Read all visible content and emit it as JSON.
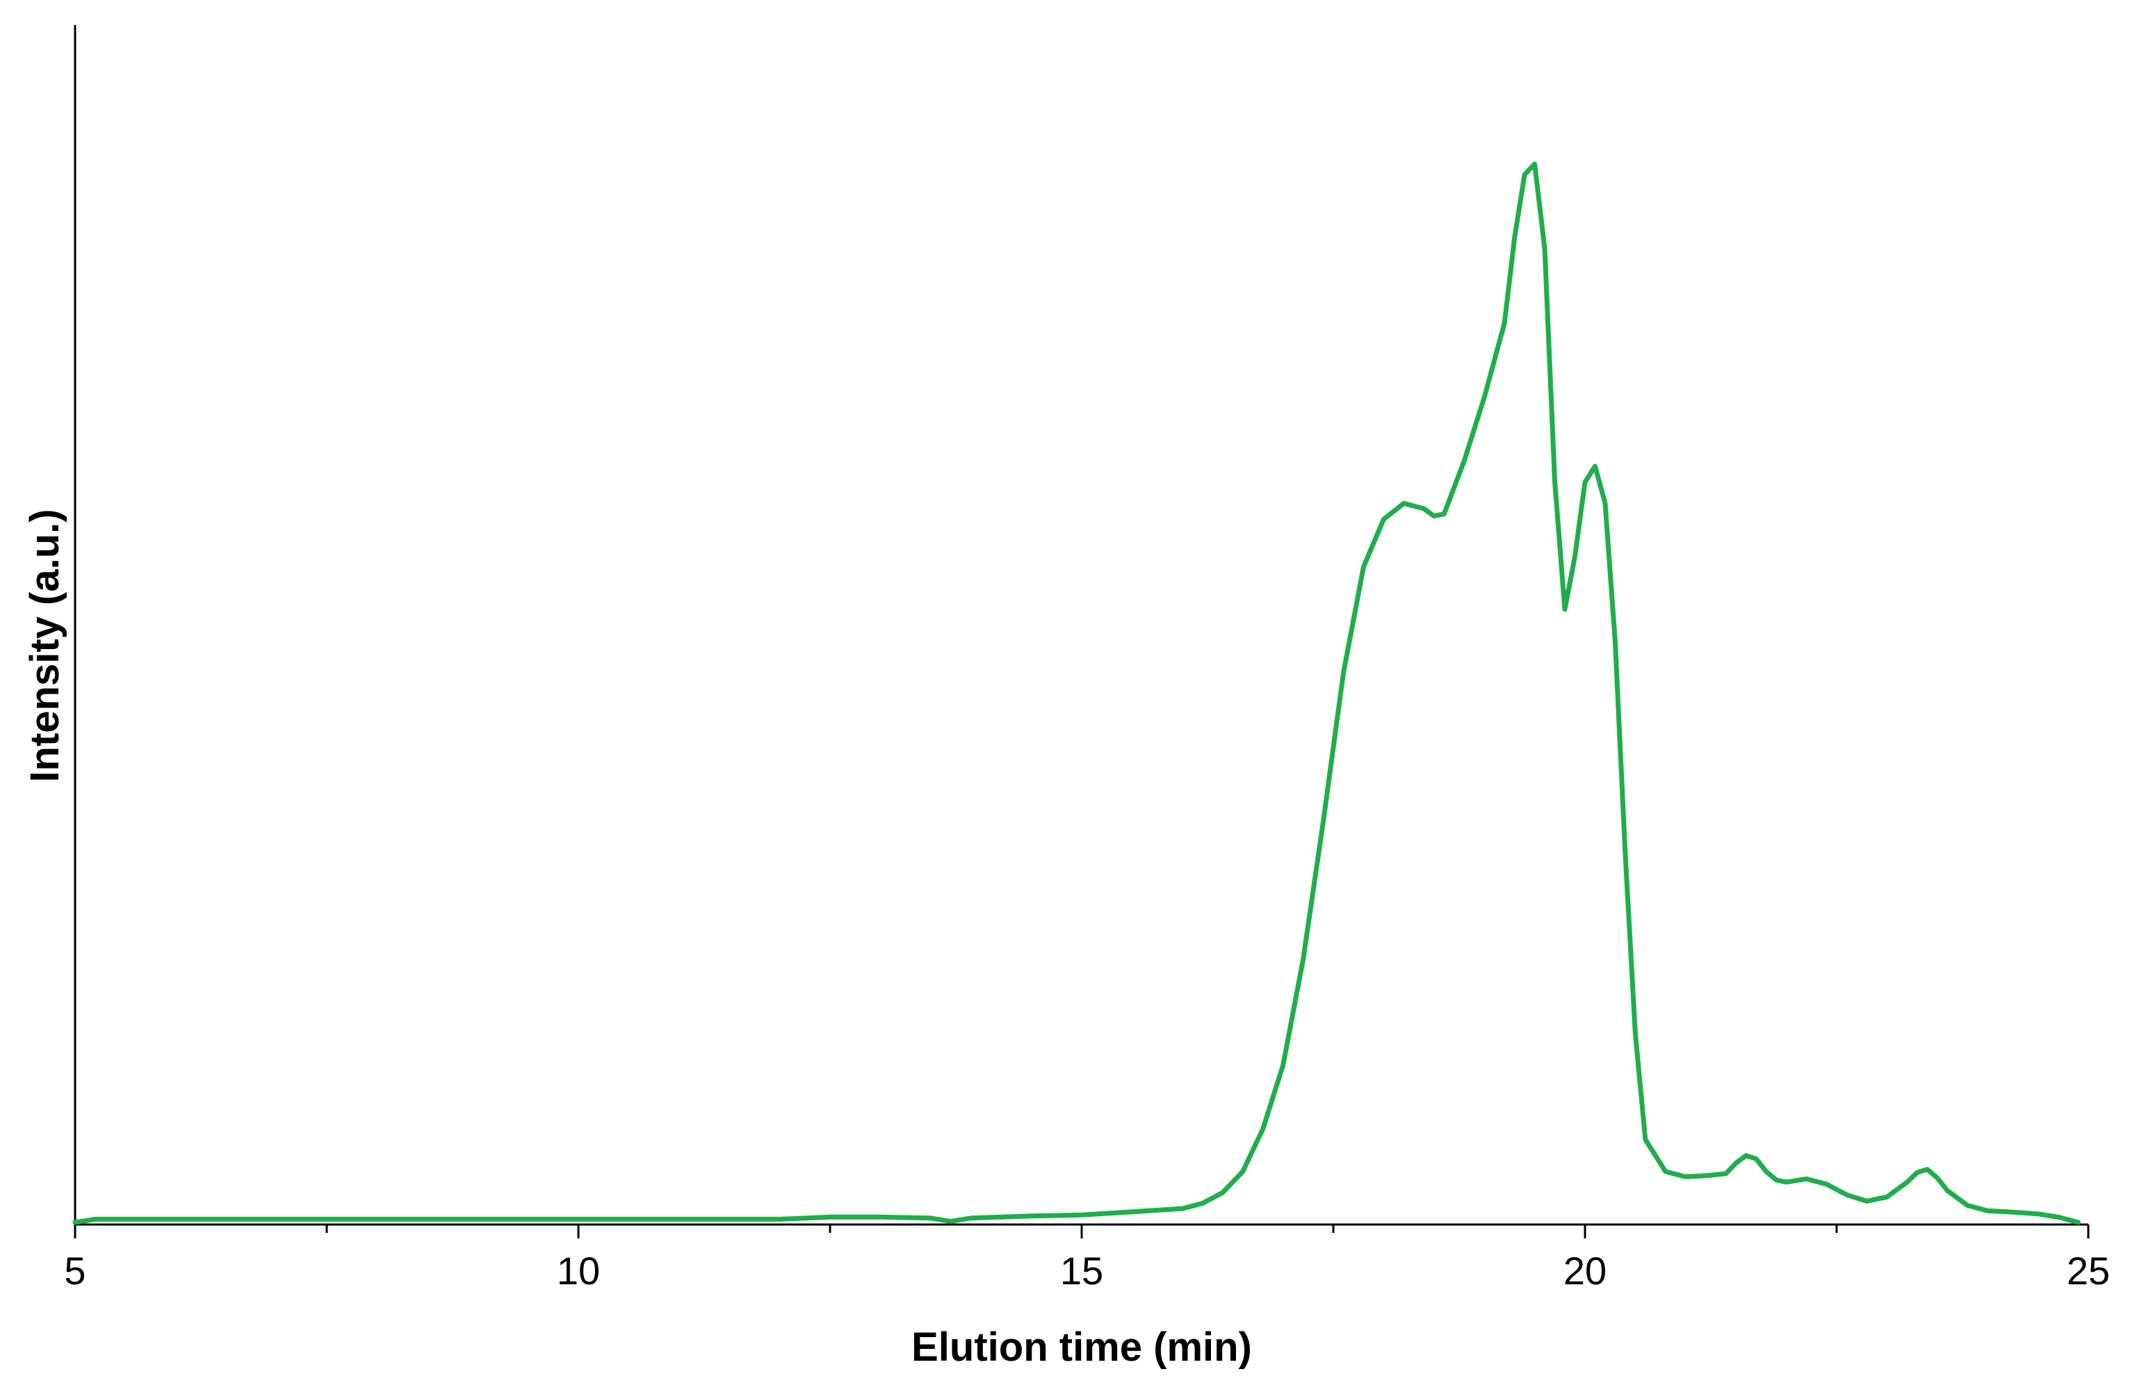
{
  "chart_data": {
    "type": "line",
    "title": "",
    "xlabel": "Elution time (min)",
    "ylabel": "Intensity (a.u.)",
    "xlim": [
      5,
      25
    ],
    "ylim": [
      0,
      100
    ],
    "x_ticks": [
      5,
      10,
      15,
      20,
      25
    ],
    "x_minor_ticks": [
      7.5,
      12.5,
      17.5,
      22.5
    ],
    "y_ticks_shown": false,
    "grid": false,
    "legend": "none",
    "series_color": "#1fae4b",
    "series": [
      {
        "x": [
          5.0,
          5.2,
          6.0,
          8.0,
          10.0,
          12.0,
          12.5,
          13.0,
          13.5,
          13.7,
          13.9,
          14.5,
          15.0,
          15.5,
          16.0,
          16.2,
          16.4,
          16.6,
          16.8,
          17.0,
          17.2,
          17.4,
          17.6,
          17.8,
          18.0,
          18.2,
          18.4,
          18.5,
          18.6,
          18.8,
          19.0,
          19.2,
          19.3,
          19.4,
          19.5,
          19.6,
          19.7,
          19.8,
          19.9,
          20.0,
          20.1,
          20.2,
          20.3,
          20.4,
          20.5,
          20.6,
          20.8,
          21.0,
          21.2,
          21.4,
          21.5,
          21.6,
          21.7,
          21.8,
          21.9,
          22.0,
          22.2,
          22.4,
          22.6,
          22.8,
          23.0,
          23.2,
          23.3,
          23.4,
          23.5,
          23.6,
          23.8,
          24.0,
          24.2,
          24.5,
          24.7,
          24.9
        ],
        "y": [
          0.2,
          0.5,
          0.5,
          0.5,
          0.5,
          0.5,
          0.7,
          0.7,
          0.6,
          0.3,
          0.6,
          0.8,
          0.9,
          1.2,
          1.5,
          2.0,
          3.0,
          5.0,
          9.0,
          15.0,
          25.0,
          38.0,
          52.0,
          62.0,
          66.5,
          68.0,
          67.5,
          66.8,
          67.0,
          72.0,
          78.0,
          85.0,
          93.0,
          99.0,
          100.0,
          92.0,
          70.0,
          58.0,
          63.0,
          70.0,
          71.5,
          68.0,
          55.0,
          35.0,
          18.0,
          8.0,
          5.0,
          4.5,
          4.6,
          4.8,
          5.8,
          6.5,
          6.2,
          5.0,
          4.2,
          4.0,
          4.3,
          3.8,
          2.8,
          2.2,
          2.6,
          4.0,
          4.9,
          5.2,
          4.4,
          3.2,
          1.8,
          1.3,
          1.2,
          1.0,
          0.7,
          0.2
        ]
      }
    ]
  }
}
